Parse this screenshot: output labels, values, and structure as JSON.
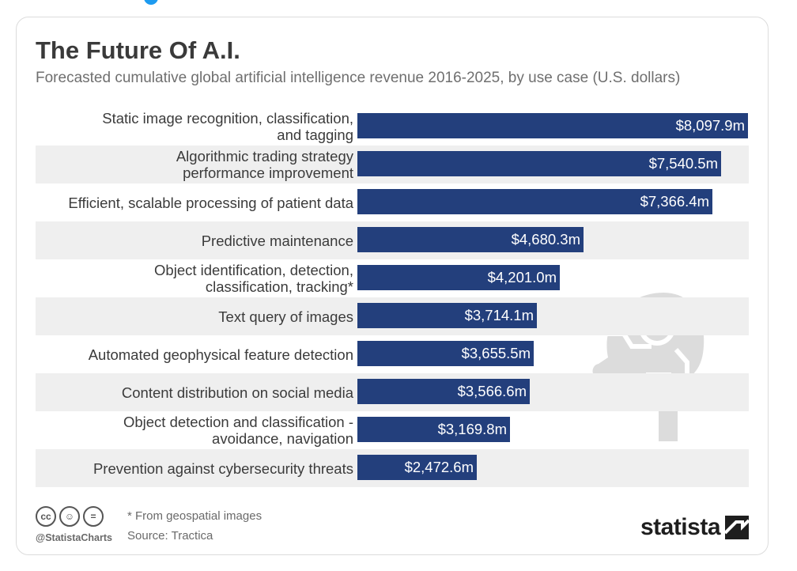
{
  "header": {
    "title": "The Future Of A.I.",
    "subtitle": "Forecasted cumulative global artificial intelligence revenue 2016-2025, by use case (U.S. dollars)"
  },
  "chart_data": {
    "type": "bar",
    "orientation": "horizontal",
    "title": "The Future Of A.I.",
    "subtitle": "Forecasted cumulative global artificial intelligence revenue 2016-2025, by use case (U.S. dollars)",
    "categories": [
      "Static image recognition, classification, and tagging",
      "Algorithmic trading strategy performance improvement",
      "Efficient, scalable processing of patient data",
      "Predictive maintenance",
      "Object identification, detection, classification, tracking*",
      "Text query of images",
      "Automated geophysical feature detection",
      "Content distribution on social media",
      "Object detection and classification - avoidance, navigation",
      "Prevention against cybersecurity threats"
    ],
    "values": [
      8097.9,
      7540.5,
      7366.4,
      4680.3,
      4201.0,
      3714.1,
      3655.5,
      3566.6,
      3169.8,
      2472.6
    ],
    "value_labels": [
      "$8,097.9m",
      "$7,540.5m",
      "$7,366.4m",
      "$4,680.3m",
      "$4,201.0m",
      "$3,714.1m",
      "$3,655.5m",
      "$3,566.6m",
      "$3,169.8m",
      "$2,472.6m"
    ],
    "label_lines": [
      [
        "Static image recognition, classification,",
        "and tagging"
      ],
      [
        "Algorithmic trading strategy",
        "performance improvement"
      ],
      [
        "Efficient, scalable processing of patient data"
      ],
      [
        "Predictive maintenance"
      ],
      [
        "Object identification, detection,",
        "classification, tracking*"
      ],
      [
        "Text query of images"
      ],
      [
        "Automated geophysical feature detection"
      ],
      [
        "Content distribution on social media"
      ],
      [
        "Object detection and classification -",
        "avoidance, navigation"
      ],
      [
        "Prevention against cybersecurity threats"
      ]
    ],
    "xlim": [
      0,
      8097.9
    ],
    "grid": false,
    "bar_color": "#233f7c",
    "stripe_color": "#efefef"
  },
  "footer": {
    "note": "* From geospatial images",
    "source": "Source: Tractica",
    "handle": "@StatistaCharts",
    "cc_icons": [
      "cc",
      "by",
      "nd"
    ],
    "brand": "statista"
  },
  "colors": {
    "accent": "#233f7c",
    "title": "#3a3a3a",
    "muted": "#6f6f6f"
  }
}
